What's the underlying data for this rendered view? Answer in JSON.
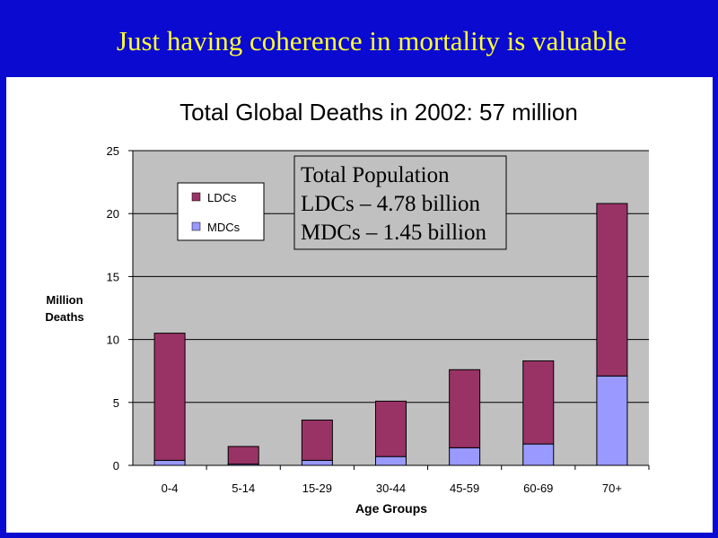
{
  "slide": {
    "title": "Just having coherence in mortality is valuable"
  },
  "chart_data": {
    "type": "bar",
    "stacked": true,
    "title": "Total Global Deaths in 2002: 57 million",
    "xlabel": "Age Groups",
    "ylabel": [
      "Million",
      "Deaths"
    ],
    "ylim": [
      0,
      25
    ],
    "yticks": [
      0,
      5,
      10,
      15,
      20,
      25
    ],
    "grid": true,
    "plot_background": "#c0c0c0",
    "categories": [
      "0-4",
      "5-14",
      "15-29",
      "30-44",
      "45-59",
      "60-69",
      "70+"
    ],
    "series": [
      {
        "name": "MDCs",
        "color": "#9999ff",
        "values": [
          0.4,
          0.1,
          0.4,
          0.7,
          1.4,
          1.7,
          7.1
        ]
      },
      {
        "name": "LDCs",
        "color": "#993366",
        "values": [
          10.1,
          1.4,
          3.2,
          4.4,
          6.2,
          6.6,
          13.7
        ]
      }
    ],
    "legend": {
      "placement": "top-left",
      "entries": [
        "LDCs",
        "MDCs"
      ]
    },
    "annotation": {
      "lines": [
        "Total Population",
        "LDCs – 4.78 billion",
        "MDCs – 1.45 billion"
      ]
    }
  }
}
